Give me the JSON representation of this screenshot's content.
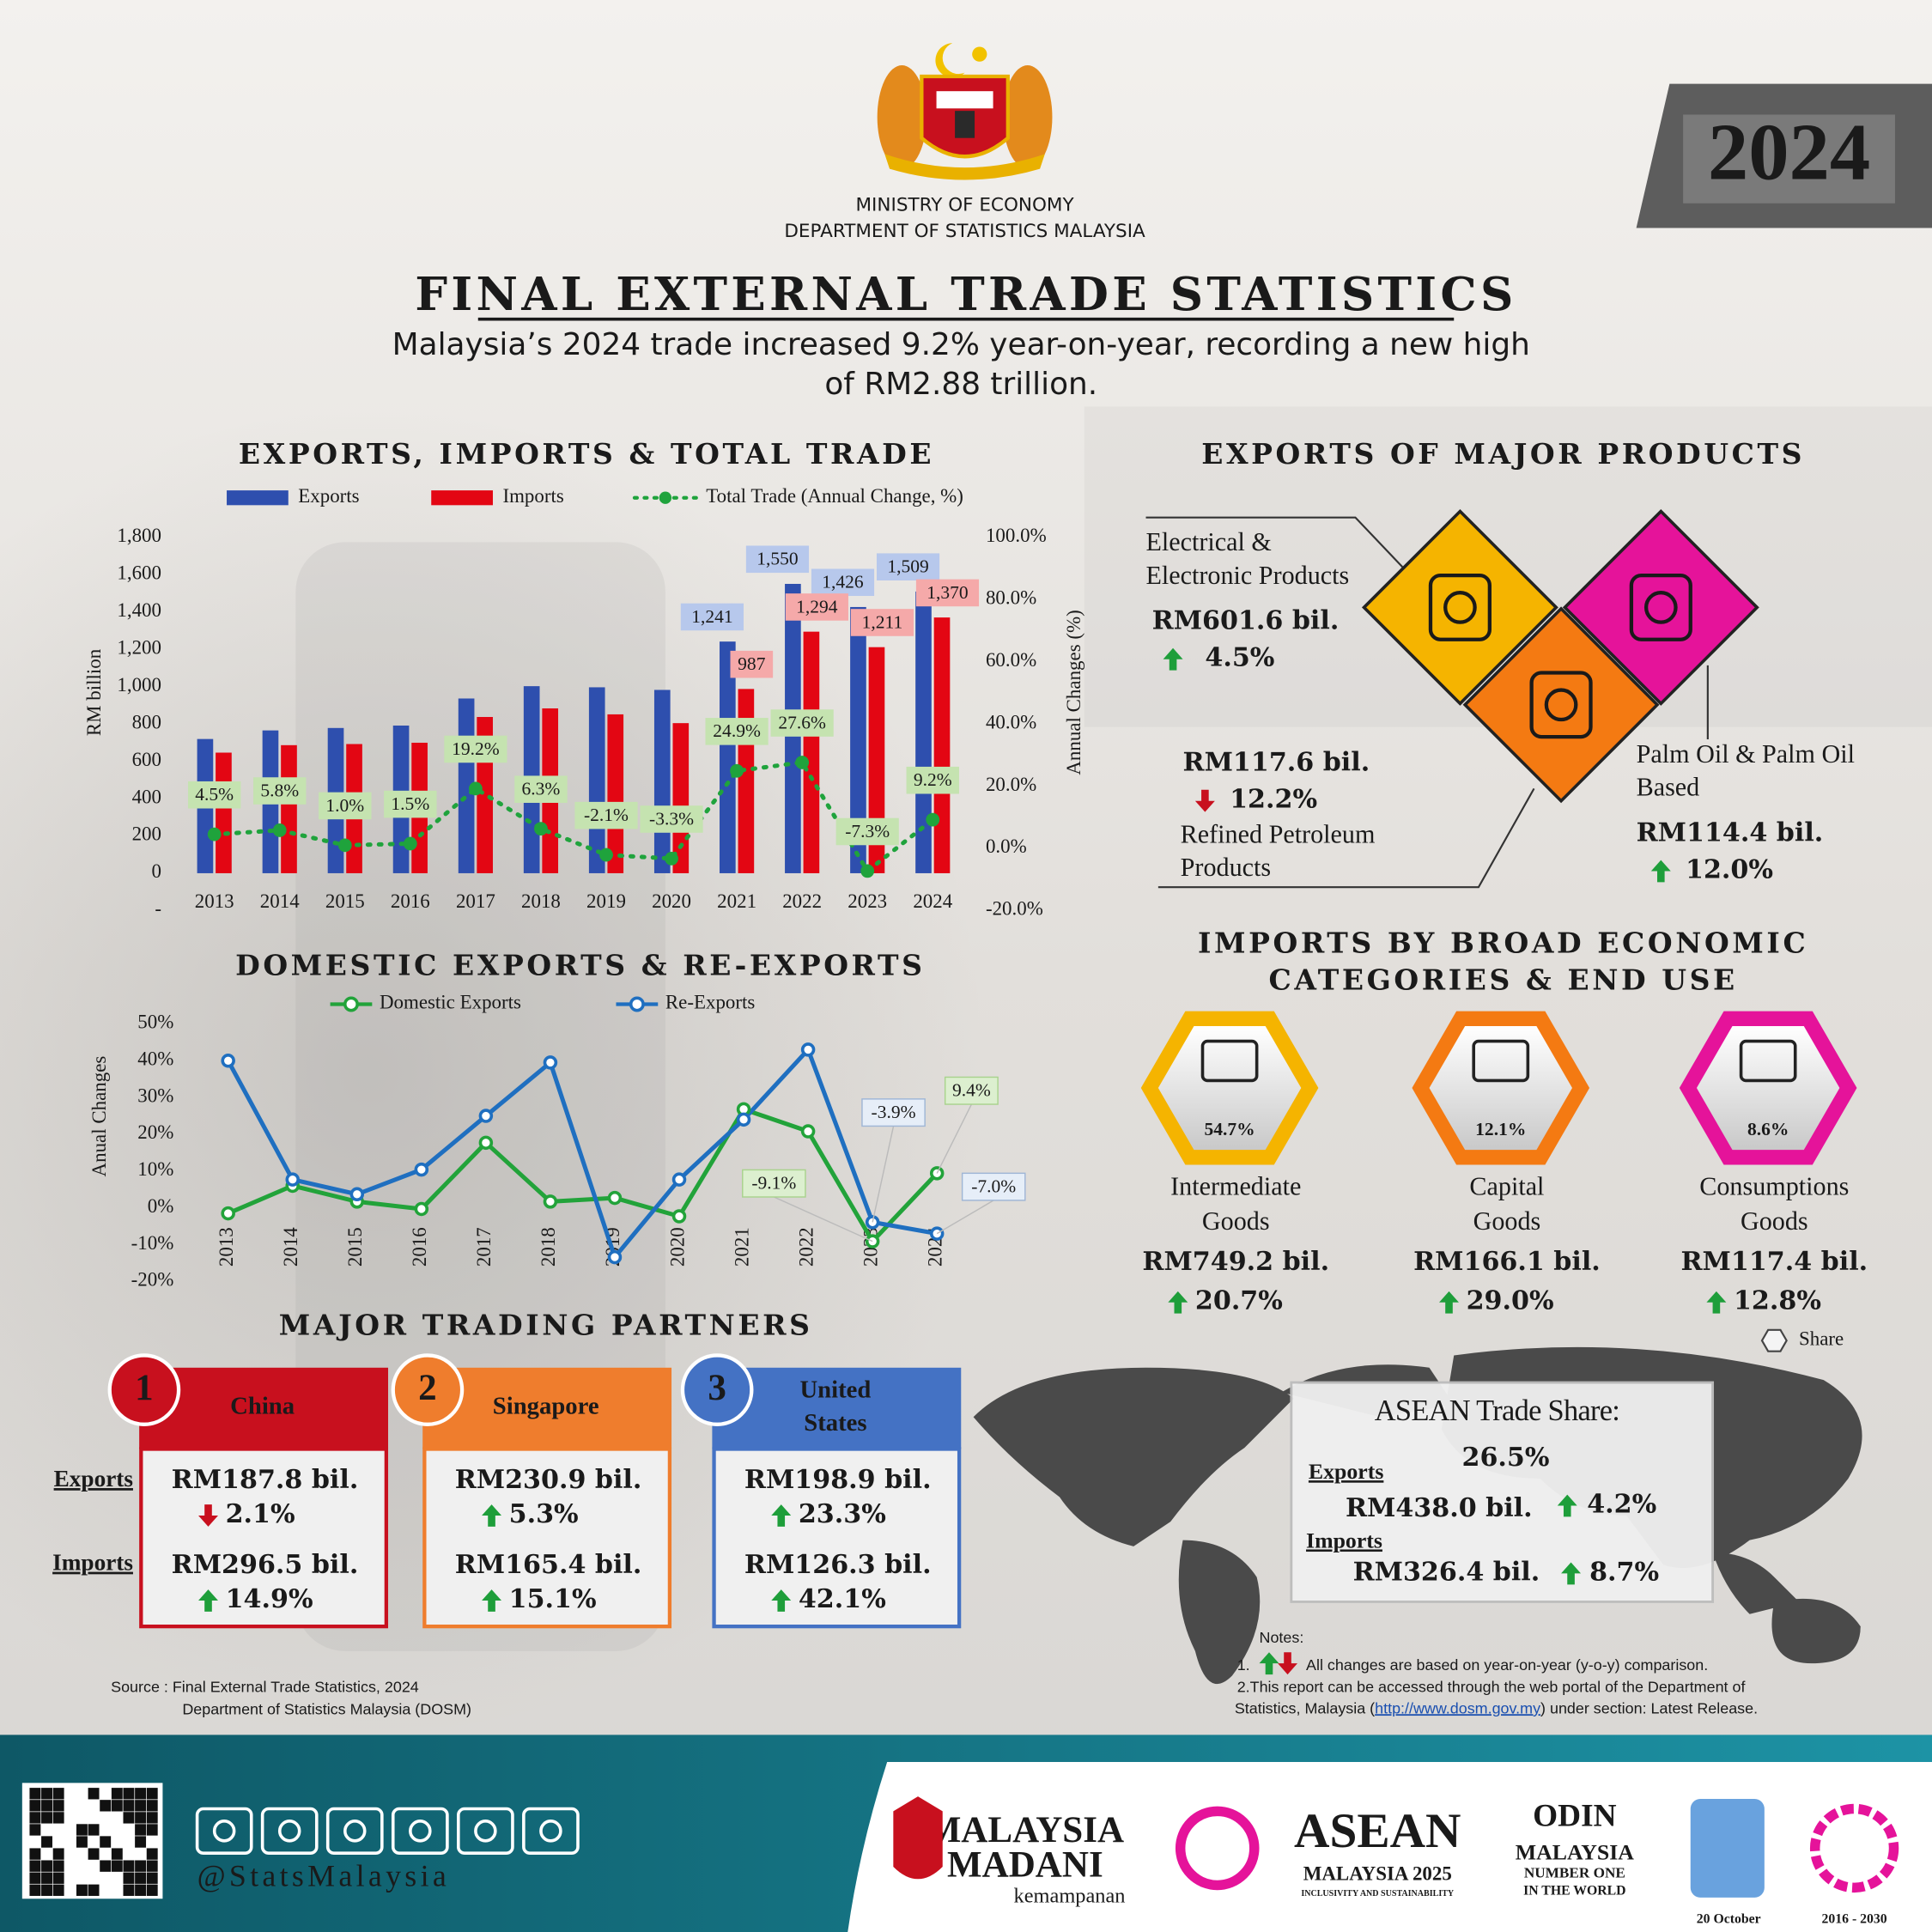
{
  "header": {
    "ministry": "MINISTRY OF ECONOMY",
    "department": "DEPARTMENT OF STATISTICS MALAYSIA",
    "year": "2024",
    "title": "FINAL EXTERNAL TRADE STATISTICS",
    "subtitle": [
      "Malaysia’s 2024 trade increased 9.2% year-on-year, recording a new high",
      "of RM2.88 trillion."
    ]
  },
  "chart_data": [
    {
      "type": "bar",
      "title": "EXPORTS, IMPORTS & TOTAL TRADE",
      "y_label": "RM billion",
      "y2_label": "Annual Changes (%)",
      "categories": [
        "2013",
        "2014",
        "2015",
        "2016",
        "2017",
        "2018",
        "2019",
        "2020",
        "2021",
        "2022",
        "2023",
        "2024"
      ],
      "series": [
        {
          "name": "Exports",
          "color": "#2e4fae",
          "values": [
            719,
            765,
            778,
            791,
            936,
            1002,
            996,
            982,
            1241,
            1550,
            1426,
            1509
          ],
          "value_labels": [
            null,
            null,
            null,
            null,
            null,
            null,
            null,
            null,
            "1,241",
            "1,550",
            "1,426",
            "1,509"
          ]
        },
        {
          "name": "Imports",
          "color": "#e30613",
          "values": [
            646,
            686,
            692,
            699,
            837,
            883,
            851,
            804,
            987,
            1294,
            1211,
            1370
          ],
          "value_labels": [
            null,
            null,
            null,
            null,
            null,
            null,
            null,
            null,
            "987",
            "1,294",
            "1,211",
            "1,370"
          ]
        },
        {
          "name": "Total Trade (Annual Change, %)",
          "type": "line",
          "axis": "y2",
          "color": "#1fa33c",
          "values": [
            4.5,
            5.8,
            1.0,
            1.5,
            19.2,
            6.3,
            -2.1,
            -3.3,
            24.9,
            27.6,
            -7.3,
            9.2
          ],
          "value_labels": [
            "4.5%",
            "5.8%",
            "1.0%",
            "1.5%",
            "19.2%",
            "6.3%",
            "-2.1%",
            "-3.3%",
            "24.9%",
            "27.6%",
            "-7.3%",
            "9.2%"
          ]
        }
      ],
      "ylim": [
        -200,
        1800
      ],
      "yticks": [
        {
          "value": -200,
          "label": "-"
        },
        0,
        200,
        400,
        600,
        800,
        {
          "value": 1000,
          "label": "1,000"
        },
        {
          "value": 1200,
          "label": "1,200"
        },
        {
          "value": 1400,
          "label": "1,400"
        },
        {
          "value": 1600,
          "label": "1,600"
        },
        {
          "value": 1800,
          "label": "1,800"
        }
      ],
      "y2lim": [
        -20,
        100
      ],
      "y2ticks": [
        {
          "value": -20,
          "label": "-20.0%"
        },
        {
          "value": 0,
          "label": "0.0%"
        },
        {
          "value": 20,
          "label": "20.0%"
        },
        {
          "value": 40,
          "label": "40.0%"
        },
        {
          "value": 60,
          "label": "60.0%"
        },
        {
          "value": 80,
          "label": "80.0%"
        },
        {
          "value": 100,
          "label": "100.0%"
        }
      ]
    },
    {
      "type": "line",
      "title": "DOMESTIC EXPORTS & RE-EXPORTS",
      "y_label": "Anual Changes",
      "categories": [
        "2013",
        "2014",
        "2015",
        "2016",
        "2017",
        "2018",
        "2019",
        "2020",
        "2021",
        "2022",
        "2023",
        "2024"
      ],
      "series": [
        {
          "name": "Domestic Exports",
          "color": "#22a33a",
          "values": [
            -1.5,
            6.0,
            1.7,
            -0.3,
            17.7,
            1.7,
            2.7,
            -2.3,
            26.8,
            20.8,
            -9.1,
            9.4
          ],
          "value_labels": [
            null,
            null,
            null,
            null,
            null,
            null,
            null,
            null,
            null,
            null,
            "-9.1%",
            "9.4%"
          ]
        },
        {
          "name": "Re-Exports",
          "color": "#1f6fc0",
          "values": [
            40.0,
            7.7,
            3.7,
            10.4,
            25.0,
            39.5,
            -13.4,
            7.7,
            24.0,
            43.0,
            -3.9,
            -7.0
          ],
          "value_labels": [
            null,
            null,
            null,
            null,
            null,
            null,
            null,
            null,
            null,
            null,
            "-3.9%",
            "-7.0%"
          ]
        }
      ],
      "ylim": [
        -20,
        50
      ],
      "yticks": [
        {
          "value": -20,
          "label": "-20%"
        },
        {
          "value": -10,
          "label": "-10%"
        },
        {
          "value": 0,
          "label": "0%"
        },
        {
          "value": 10,
          "label": "10%"
        },
        {
          "value": 20,
          "label": "20%"
        },
        {
          "value": 30,
          "label": "30%"
        },
        {
          "value": 40,
          "label": "40%"
        },
        {
          "value": 50,
          "label": "50%"
        }
      ]
    }
  ],
  "exports_products": {
    "title": "EXPORTS OF MAJOR PRODUCTS",
    "items": [
      {
        "name": [
          "Electrical &",
          "Electronic Products"
        ],
        "value": "RM601.6 bil.",
        "change": "4.5%",
        "trend": "up",
        "color": "#f5b400"
      },
      {
        "name": [
          "Refined Petroleum",
          "Products"
        ],
        "value": "RM117.6 bil.",
        "change": "12.2%",
        "trend": "down",
        "color": "#f47a12"
      },
      {
        "name": [
          "Palm Oil & Palm Oil",
          "Based"
        ],
        "value": "RM114.4 bil.",
        "change": "12.0%",
        "trend": "up",
        "color": "#e5139a"
      }
    ]
  },
  "imports_categories": {
    "title": [
      "IMPORTS BY BROAD ECONOMIC",
      "CATEGORIES & END USE"
    ],
    "legend": "Share",
    "items": [
      {
        "share": "54.7%",
        "name": [
          "Intermediate",
          "Goods"
        ],
        "value": "RM749.2 bil.",
        "change": "20.7%",
        "trend": "up",
        "color": "#f5b400"
      },
      {
        "share": "12.1%",
        "name": [
          "Capital",
          "Goods"
        ],
        "value": "RM166.1 bil.",
        "change": "29.0%",
        "trend": "up",
        "color": "#f47a12"
      },
      {
        "share": "8.6%",
        "name": [
          "Consumptions",
          "Goods"
        ],
        "value": "RM117.4 bil.",
        "change": "12.8%",
        "trend": "up",
        "color": "#e5139a"
      }
    ]
  },
  "partners": {
    "title": "MAJOR TRADING PARTNERS",
    "exports_label": "Exports",
    "imports_label": "Imports",
    "items": [
      {
        "rank": 1,
        "name": [
          "China"
        ],
        "color": "#c8101e",
        "exports": "RM187.8 bil.",
        "exports_change": "2.1%",
        "exports_trend": "down",
        "imports": "RM296.5 bil.",
        "imports_change": "14.9%",
        "imports_trend": "up"
      },
      {
        "rank": 2,
        "name": [
          "Singapore"
        ],
        "color": "#ef7d2d",
        "exports": "RM230.9 bil.",
        "exports_change": "5.3%",
        "exports_trend": "up",
        "imports": "RM165.4 bil.",
        "imports_change": "15.1%",
        "imports_trend": "up"
      },
      {
        "rank": 3,
        "name": [
          "United",
          "States"
        ],
        "color": "#4472c4",
        "exports": "RM198.9 bil.",
        "exports_change": "23.3%",
        "exports_trend": "up",
        "imports": "RM126.3 bil.",
        "imports_change": "42.1%",
        "imports_trend": "up"
      }
    ]
  },
  "asean": {
    "title": "ASEAN Trade Share:",
    "share": "26.5%",
    "exports_label": "Exports",
    "exports": "RM438.0 bil.",
    "exports_change": "4.2%",
    "exports_trend": "up",
    "imports_label": "Imports",
    "imports": "RM326.4 bil.",
    "imports_change": "8.7%",
    "imports_trend": "up"
  },
  "notes": {
    "title": "Notes:",
    "note1_number": "1.",
    "note1": "All changes are based on year-on-year (y-o-y) comparison.",
    "note2_line1": "2.This report can be accessed through the web portal of the Department of",
    "note2_line2": [
      "Statistics, Malaysia (",
      "http://www.dosm.gov.my",
      ") under section: Latest Release."
    ]
  },
  "source": [
    "Source : Final External Trade Statistics, 2024",
    "Department of Statistics Malaysia (DOSM)"
  ],
  "footer": {
    "handle": "@StatsMalaysia",
    "logos": [
      "MALAYSIA",
      "MADANI",
      "kemampanan",
      "ASEAN",
      "MALAYSIA 2025",
      "INCLUSIVITY AND SUSTAINABILITY",
      "ODIN",
      "MALAYSIA",
      "NUMBER ONE",
      "IN THE WORLD",
      "20 October",
      "2016 - 2030"
    ]
  }
}
